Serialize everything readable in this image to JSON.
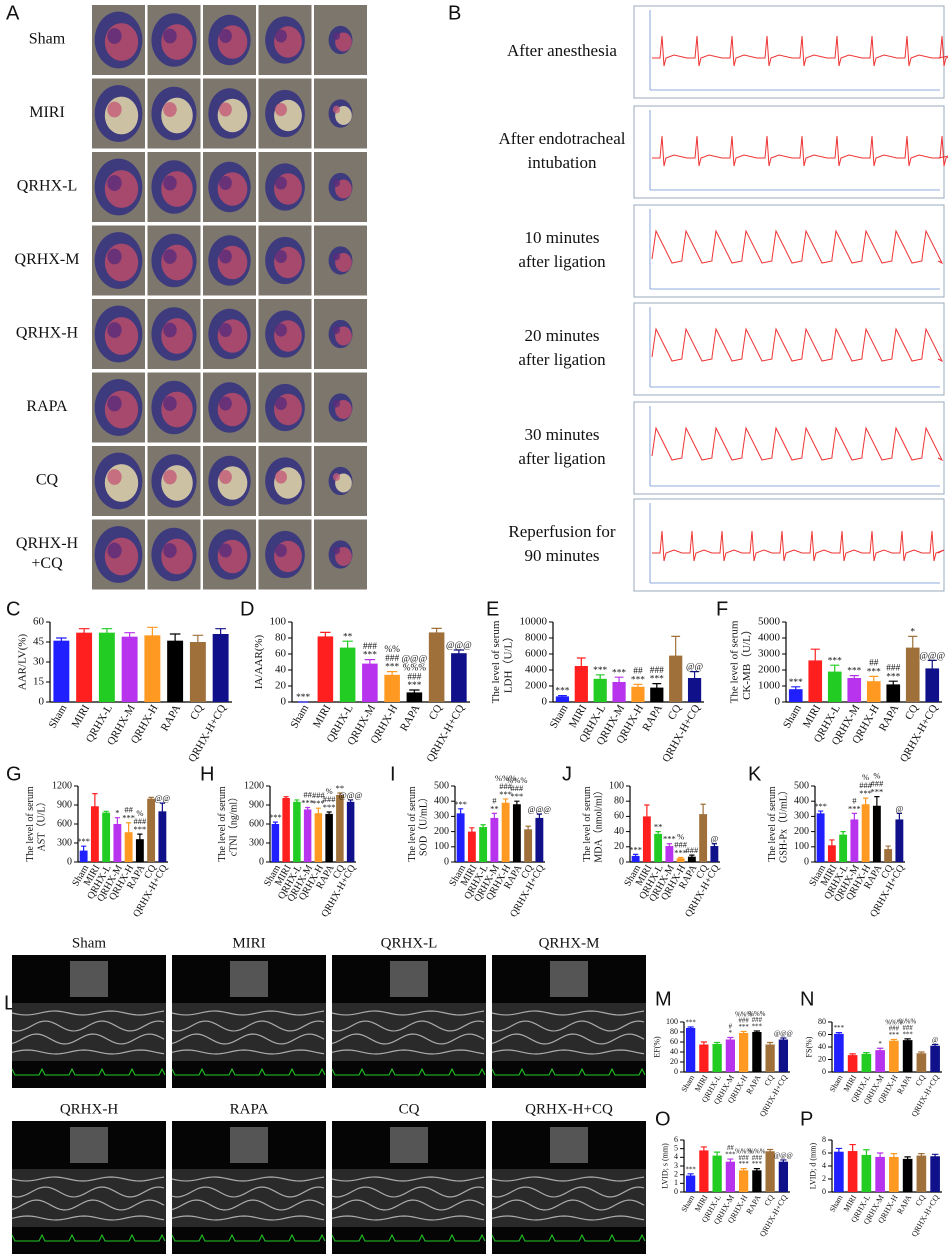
{
  "panel_A": {
    "letter": "A",
    "rows": [
      [
        "Sham"
      ],
      [
        "MIRI"
      ],
      [
        "QRHX-L"
      ],
      [
        "QRHX-M"
      ],
      [
        "QRHX-H"
      ],
      [
        "RAPA"
      ],
      [
        "CQ"
      ],
      [
        "QRHX-H",
        "+CQ"
      ]
    ]
  },
  "panel_B": {
    "letter": "B",
    "labels": [
      [
        "After anesthesia"
      ],
      [
        "After endotracheal",
        "intubation"
      ],
      [
        "10 minutes",
        "after ligation"
      ],
      [
        "20 minutes",
        "after ligation"
      ],
      [
        "30 minutes",
        "after ligation"
      ],
      [
        "Reperfusion for",
        "90 minutes"
      ]
    ]
  },
  "panel_L": {
    "letter": "L",
    "labels": [
      "Sham",
      "MIRI",
      "QRHX-L",
      "QRHX-M",
      "QRHX-H",
      "RAPA",
      "CQ",
      "QRHX-H+CQ"
    ]
  },
  "chart_data": [
    {
      "type": "bar",
      "panel": "C",
      "y_label": [
        "AAR/LV(%)"
      ],
      "categories": [
        "Sham",
        "MIRI",
        "QRHX-L",
        "QRHX-M",
        "QRHX-H",
        "RAPA",
        "CQ",
        "QRHX-H+CQ"
      ],
      "colors": [
        "#1f1fff",
        "#ff1f1f",
        "#22cc22",
        "#b833ee",
        "#ff9922",
        "#000000",
        "#a0703a",
        "#10108a"
      ],
      "values": [
        46,
        52,
        52,
        49,
        50,
        46,
        45,
        51
      ],
      "errors": [
        2,
        3,
        3,
        3,
        6,
        5,
        5,
        4
      ],
      "annotations": [
        null,
        null,
        null,
        null,
        null,
        null,
        null,
        null
      ],
      "ylim": [
        0,
        60
      ],
      "yticks": [
        0,
        15,
        30,
        45,
        60
      ]
    },
    {
      "type": "bar",
      "panel": "D",
      "y_label": [
        "IA/AAR(%)"
      ],
      "categories": [
        "Sham",
        "MIRI",
        "QRHX-L",
        "QRHX-M",
        "QRHX-H",
        "RAPA",
        "CQ",
        "QRHX-H+CQ"
      ],
      "colors": [
        "#1f1fff",
        "#ff1f1f",
        "#22cc22",
        "#b833ee",
        "#ff9922",
        "#000000",
        "#a0703a",
        "#10108a"
      ],
      "values": [
        0,
        82,
        68,
        48,
        34,
        12,
        87,
        61
      ],
      "errors": [
        0,
        5,
        8,
        5,
        4,
        3,
        5,
        4
      ],
      "annotations": [
        [
          "***"
        ],
        null,
        [
          "**"
        ],
        [
          "###",
          "***"
        ],
        [
          "%%",
          "###",
          "***"
        ],
        [
          "@@@",
          "%%%",
          "###",
          "***"
        ],
        null,
        [
          "@@@"
        ]
      ],
      "ylim": [
        0,
        100
      ],
      "yticks": [
        0,
        20,
        40,
        60,
        80,
        100
      ]
    },
    {
      "type": "bar",
      "panel": "E",
      "y_label": [
        "The level of serum",
        "LDH（U/L）"
      ],
      "categories": [
        "Sham",
        "MIRI",
        "QRHX-L",
        "QRHX-M",
        "QRHX-H",
        "RAPA",
        "CQ",
        "QRHX-H+CQ"
      ],
      "colors": [
        "#1f1fff",
        "#ff1f1f",
        "#22cc22",
        "#b833ee",
        "#ff9922",
        "#000000",
        "#a0703a",
        "#10108a"
      ],
      "values": [
        700,
        4500,
        2900,
        2500,
        1900,
        1800,
        5800,
        3000
      ],
      "errors": [
        100,
        1000,
        500,
        600,
        300,
        500,
        2400,
        800
      ],
      "annotations": [
        [
          "***"
        ],
        null,
        [
          "***"
        ],
        [
          "***"
        ],
        [
          "##",
          "***"
        ],
        [
          "###",
          "***"
        ],
        null,
        [
          "@@"
        ]
      ],
      "ylim": [
        0,
        10000
      ],
      "yticks": [
        0,
        2000,
        4000,
        6000,
        8000,
        10000
      ]
    },
    {
      "type": "bar",
      "panel": "F",
      "y_label": [
        "The level of serum",
        "CK-MB（U/L）"
      ],
      "categories": [
        "Sham",
        "MIRI",
        "QRHX-L",
        "QRHX-M",
        "QRHX-H",
        "RAPA",
        "CQ",
        "QRHX-H+CQ"
      ],
      "colors": [
        "#1f1fff",
        "#ff1f1f",
        "#22cc22",
        "#b833ee",
        "#ff9922",
        "#000000",
        "#a0703a",
        "#10108a"
      ],
      "values": [
        800,
        2600,
        1900,
        1500,
        1300,
        1100,
        3400,
        2100
      ],
      "errors": [
        150,
        700,
        400,
        150,
        300,
        200,
        700,
        500
      ],
      "annotations": [
        [
          "***"
        ],
        null,
        [
          "***"
        ],
        [
          "***"
        ],
        [
          "##",
          "***"
        ],
        [
          "###",
          "***"
        ],
        [
          "*"
        ],
        [
          "@@@"
        ]
      ],
      "ylim": [
        0,
        5000
      ],
      "yticks": [
        0,
        1000,
        2000,
        3000,
        4000,
        5000
      ]
    },
    {
      "type": "bar",
      "panel": "G",
      "y_label": [
        "The level of serum",
        "AST（U/L）"
      ],
      "categories": [
        "Sham",
        "MIRI",
        "QRHX-L",
        "QRHX-M",
        "QRHX-H",
        "RAPA",
        "CQ",
        "QRHX-H+CQ"
      ],
      "colors": [
        "#1f1fff",
        "#ff1f1f",
        "#22cc22",
        "#b833ee",
        "#ff9922",
        "#000000",
        "#a0703a",
        "#10108a"
      ],
      "values": [
        180,
        880,
        780,
        600,
        470,
        360,
        1000,
        800
      ],
      "errors": [
        70,
        200,
        20,
        100,
        150,
        80,
        20,
        130
      ],
      "annotations": [
        [
          "***"
        ],
        null,
        null,
        [
          "*"
        ],
        [
          "##",
          "***"
        ],
        [
          "%",
          "###",
          "***"
        ],
        null,
        [
          "@@"
        ]
      ],
      "ylim": [
        0,
        1200
      ],
      "yticks": [
        0,
        300,
        600,
        900,
        1200
      ]
    },
    {
      "type": "bar",
      "panel": "H",
      "y_label": [
        "The level of serum",
        "cTNI（ng/ml）"
      ],
      "categories": [
        "Sham",
        "MIRI",
        "QRHX-L",
        "QRHX-M",
        "QRHX-H",
        "RAPA",
        "CQ",
        "QRHX-H+CQ"
      ],
      "colors": [
        "#1f1fff",
        "#ff1f1f",
        "#22cc22",
        "#b833ee",
        "#ff9922",
        "#000000",
        "#a0703a",
        "#10108a"
      ],
      "values": [
        600,
        1010,
        950,
        830,
        770,
        760,
        1060,
        950
      ],
      "errors": [
        30,
        20,
        30,
        30,
        80,
        30,
        30,
        30
      ],
      "annotations": [
        [
          "***"
        ],
        null,
        null,
        [
          "##",
          "***"
        ],
        [
          "###",
          "***"
        ],
        [
          "%",
          "###",
          "***"
        ],
        [
          "**"
        ],
        [
          "@@@"
        ]
      ],
      "ylim": [
        0,
        1200
      ],
      "yticks": [
        0,
        300,
        600,
        900,
        1200
      ]
    },
    {
      "type": "bar",
      "panel": "I",
      "y_label": [
        "The level of serum",
        "SOD（U/mL）"
      ],
      "categories": [
        "Sham",
        "MIRI",
        "QRHX-L",
        "QRHX-M",
        "QRHX-H",
        "RAPA",
        "CQ",
        "QRHX-H+CQ"
      ],
      "colors": [
        "#1f1fff",
        "#ff1f1f",
        "#22cc22",
        "#b833ee",
        "#ff9922",
        "#000000",
        "#a0703a",
        "#10108a"
      ],
      "values": [
        320,
        200,
        230,
        290,
        390,
        380,
        215,
        290
      ],
      "errors": [
        30,
        25,
        15,
        30,
        25,
        20,
        20,
        25
      ],
      "annotations": [
        [
          "***"
        ],
        null,
        null,
        [
          "#",
          "**"
        ],
        [
          "%%%",
          "###",
          "***"
        ],
        [
          "%%%",
          "###",
          "***"
        ],
        null,
        [
          "@@@"
        ]
      ],
      "ylim": [
        0,
        500
      ],
      "yticks": [
        0,
        100,
        200,
        300,
        400,
        500
      ]
    },
    {
      "type": "bar",
      "panel": "J",
      "y_label": [
        "The level of serum",
        "MDA（nmol/ml）"
      ],
      "categories": [
        "Sham",
        "MIRI",
        "QRHX-L",
        "QRHX-M",
        "QRHX-H",
        "RAPA",
        "CQ",
        "QRHX-H+CQ"
      ],
      "colors": [
        "#1f1fff",
        "#ff1f1f",
        "#22cc22",
        "#b833ee",
        "#ff9922",
        "#000000",
        "#a0703a",
        "#10108a"
      ],
      "values": [
        8,
        60,
        37,
        21,
        5,
        7,
        63,
        21
      ],
      "errors": [
        2,
        15,
        3,
        3,
        1,
        2,
        13,
        3
      ],
      "annotations": [
        [
          "***"
        ],
        null,
        [
          "**"
        ],
        [
          "***"
        ],
        [
          "%",
          "###",
          "***"
        ],
        [
          "###"
        ],
        null,
        [
          "@"
        ]
      ],
      "ylim": [
        0,
        100
      ],
      "yticks": [
        0,
        20,
        40,
        60,
        80,
        100
      ]
    },
    {
      "type": "bar",
      "panel": "K",
      "y_label": [
        "The level of serum",
        "GSH-Px（U/mL）"
      ],
      "categories": [
        "Sham",
        "MIRI",
        "QRHX-L",
        "QRHX-M",
        "QRHX-H",
        "RAPA",
        "CQ",
        "QRHX-H+CQ"
      ],
      "colors": [
        "#1f1fff",
        "#ff1f1f",
        "#22cc22",
        "#b833ee",
        "#ff9922",
        "#000000",
        "#a0703a",
        "#10108a"
      ],
      "values": [
        320,
        110,
        180,
        280,
        380,
        370,
        85,
        280
      ],
      "errors": [
        15,
        35,
        20,
        40,
        40,
        60,
        20,
        40
      ],
      "annotations": [
        [
          "***"
        ],
        null,
        null,
        [
          "#",
          "***"
        ],
        [
          "%",
          "###",
          "***"
        ],
        [
          "%",
          "###",
          "***"
        ],
        null,
        [
          "@"
        ]
      ],
      "ylim": [
        0,
        500
      ],
      "yticks": [
        0,
        100,
        200,
        300,
        400,
        500
      ]
    },
    {
      "type": "bar",
      "panel": "M",
      "y_label": [
        "EF(%)"
      ],
      "categories": [
        "Sham",
        "MIRI",
        "QRHX-L",
        "QRHX-M",
        "QRHX-H",
        "RAPA",
        "CQ",
        "QRHX-H+CQ"
      ],
      "colors": [
        "#1f1fff",
        "#ff1f1f",
        "#22cc22",
        "#b833ee",
        "#ff9922",
        "#000000",
        "#a0703a",
        "#10108a"
      ],
      "values": [
        88,
        55,
        56,
        65,
        78,
        80,
        55,
        65
      ],
      "errors": [
        2,
        5,
        3,
        4,
        3,
        2,
        4,
        3
      ],
      "annotations": [
        [
          "***"
        ],
        null,
        null,
        [
          "#",
          "*"
        ],
        [
          "%%%",
          "###",
          "***"
        ],
        [
          "%%%",
          "###",
          "***"
        ],
        null,
        [
          "@@@"
        ]
      ],
      "ylim": [
        0,
        100
      ],
      "yticks": [
        0,
        20,
        40,
        60,
        80,
        100
      ]
    },
    {
      "type": "bar",
      "panel": "N",
      "y_label": [
        "FS(%)"
      ],
      "categories": [
        "Sham",
        "MIRI",
        "QRHX-L",
        "QRHX-M",
        "QRHX-H",
        "RAPA",
        "CQ",
        "QRHX-H+CQ"
      ],
      "colors": [
        "#1f1fff",
        "#ff1f1f",
        "#22cc22",
        "#b833ee",
        "#ff9922",
        "#000000",
        "#a0703a",
        "#10108a"
      ],
      "values": [
        61,
        27,
        29,
        35,
        50,
        51,
        30,
        42
      ],
      "errors": [
        2,
        2,
        2,
        3,
        2,
        2,
        2,
        2
      ],
      "annotations": [
        [
          "***"
        ],
        null,
        null,
        [
          "*"
        ],
        [
          "%%%",
          "###",
          "***"
        ],
        [
          "%%%",
          "###",
          "***"
        ],
        null,
        [
          "@"
        ]
      ],
      "ylim": [
        0,
        80
      ],
      "yticks": [
        0,
        20,
        40,
        60,
        80
      ]
    },
    {
      "type": "bar",
      "panel": "O",
      "y_label": [
        "LVID; s (mm)"
      ],
      "categories": [
        "Sham",
        "MIRI",
        "QRHX-L",
        "QRHX-M",
        "QRHX-H",
        "RAPA",
        "CQ",
        "QRHX-H+CQ"
      ],
      "colors": [
        "#1f1fff",
        "#ff1f1f",
        "#22cc22",
        "#b833ee",
        "#ff9922",
        "#000000",
        "#a0703a",
        "#10108a"
      ],
      "values": [
        1.9,
        4.8,
        4.2,
        3.5,
        2.5,
        2.5,
        4.7,
        3.5
      ],
      "errors": [
        0.2,
        0.4,
        0.4,
        0.3,
        0.2,
        0.2,
        0.2,
        0.2
      ],
      "annotations": [
        [
          "***"
        ],
        null,
        null,
        [
          "##",
          "***"
        ],
        [
          "%%%",
          "###",
          "***"
        ],
        [
          "%%%",
          "###",
          "***"
        ],
        null,
        [
          "@@@"
        ]
      ],
      "ylim": [
        0,
        6
      ],
      "yticks": [
        0,
        1,
        2,
        3,
        4,
        5,
        6
      ]
    },
    {
      "type": "bar",
      "panel": "P",
      "y_label": [
        "LVID; d (mm)"
      ],
      "categories": [
        "Sham",
        "MIRI",
        "QRHX-L",
        "QRHX-M",
        "QRHX-H",
        "RAPA",
        "CQ",
        "QRHX-H+CQ"
      ],
      "colors": [
        "#1f1fff",
        "#ff1f1f",
        "#22cc22",
        "#b833ee",
        "#ff9922",
        "#000000",
        "#a0703a",
        "#10108a"
      ],
      "values": [
        6.2,
        6.3,
        5.7,
        5.4,
        5.4,
        5.1,
        5.6,
        5.5
      ],
      "errors": [
        0.5,
        1,
        0.8,
        0.6,
        0.5,
        0.3,
        0.3,
        0.3
      ],
      "annotations": [
        null,
        null,
        null,
        null,
        null,
        null,
        null,
        null
      ],
      "ylim": [
        0,
        8
      ],
      "yticks": [
        0,
        2,
        4,
        6,
        8
      ]
    }
  ]
}
